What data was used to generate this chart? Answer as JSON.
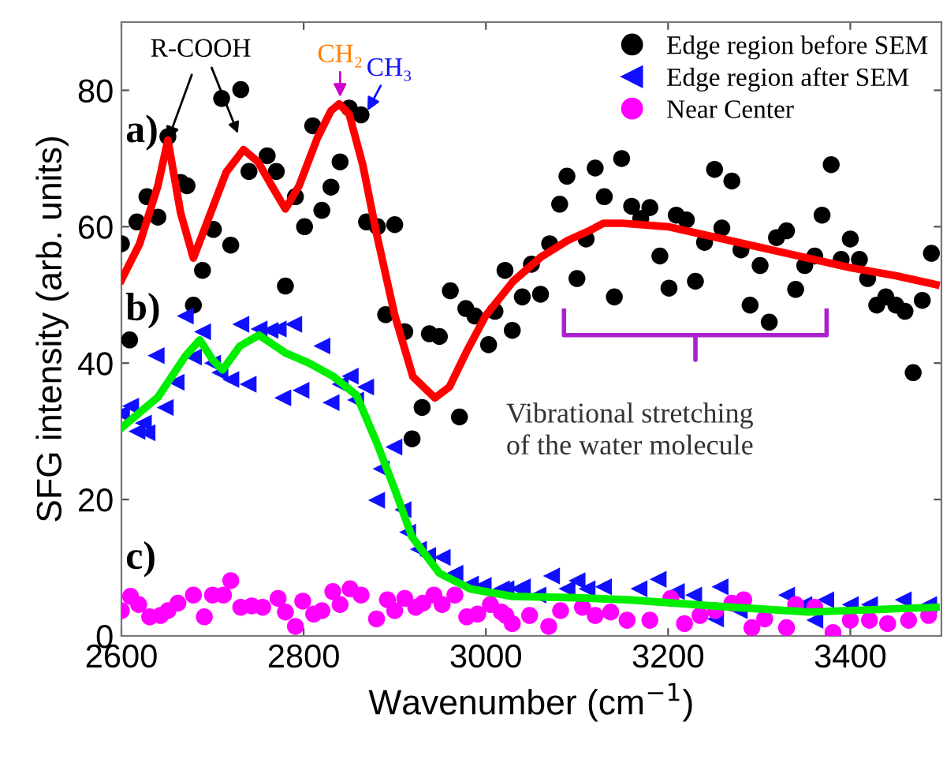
{
  "chart_data": {
    "type": "scatter",
    "xlabel": "Wavenumber (cm$^{−1}$)",
    "ylabel": "SFG intensity (arb. units)",
    "xlim": [
      2600,
      3500
    ],
    "ylim": [
      0,
      90
    ],
    "xticks": [
      2600,
      2800,
      3000,
      3200,
      3400
    ],
    "yticks": [
      0,
      20,
      40,
      60,
      80
    ],
    "grid": false,
    "legend": "top right",
    "series": [
      {
        "name": "Edge region before SEM",
        "marker": "circle",
        "color": "#000000",
        "x": [
          2600,
          2609,
          2617,
          2628,
          2640,
          2651,
          2665,
          2672,
          2679,
          2689,
          2701,
          2710,
          2720,
          2731,
          2740,
          2760,
          2770,
          2780,
          2791,
          2801,
          2810,
          2820,
          2830,
          2840,
          2850,
          2863,
          2869,
          2881,
          2890,
          2900,
          2911,
          2919,
          2930,
          2938,
          2949,
          2961,
          2971,
          2978,
          2988,
          3003,
          3010,
          3021,
          3029,
          3040,
          3050,
          3060,
          3070,
          3081,
          3089,
          3100,
          3110,
          3120,
          3130,
          3141,
          3149,
          3160,
          3170,
          3180,
          3191,
          3201,
          3209,
          3220,
          3230,
          3240,
          3251,
          3259,
          3270,
          3280,
          3290,
          3301,
          3311,
          3319,
          3330,
          3340,
          3350,
          3361,
          3369,
          3379,
          3390,
          3400,
          3410,
          3419,
          3429,
          3439,
          3450,
          3460,
          3469,
          3479,
          3489
        ],
        "values": [
          57.5,
          43.4,
          60.7,
          64.4,
          61.4,
          73.2,
          66.5,
          66,
          48.5,
          53.6,
          59.6,
          78.8,
          57.3,
          80.1,
          68.1,
          70.4,
          68.1,
          51.3,
          64.4,
          60.0,
          74.8,
          62.4,
          65.8,
          69.5,
          77.4,
          76.4,
          60.7,
          60.0,
          47.1,
          60.3,
          44.6,
          28.9,
          33.5,
          44.3,
          43.9,
          50.6,
          32.1,
          48.0,
          46.9,
          42.7,
          47.6,
          53.6,
          44.8,
          49.7,
          54.5,
          50.1,
          57.5,
          63.3,
          67.4,
          52.4,
          58.2,
          68.6,
          64.4,
          49.7,
          70.0,
          63.0,
          61.2,
          62.8,
          55.7,
          51.0,
          61.7,
          61.0,
          52.0,
          57.7,
          68.4,
          59.8,
          66.7,
          56.6,
          48.5,
          54.3,
          46.0,
          58.4,
          59.4,
          50.8,
          54.3,
          55.7,
          61.7,
          69.1,
          55.2,
          58.2,
          55.2,
          52.4,
          48.5,
          49.7,
          48.5,
          47.6,
          38.6,
          49.2,
          56.1
        ]
      },
      {
        "name": "Edge region after SEM",
        "marker": "triangle",
        "color": "#1010ff",
        "x": [
          2600,
          2610,
          2617,
          2624,
          2628,
          2638,
          2648,
          2660,
          2670,
          2679,
          2689,
          2700,
          2708,
          2720,
          2731,
          2739,
          2751,
          2763,
          2772,
          2777,
          2789,
          2797,
          2820,
          2830,
          2840,
          2851,
          2857,
          2868,
          2880,
          2885,
          2899,
          2909,
          2914,
          2926,
          2936,
          2952,
          2966,
          2983,
          2997,
          3017,
          3022,
          3036,
          3040,
          3057,
          3072,
          3089,
          3100,
          3111,
          3129,
          3168,
          3189,
          3209,
          3228,
          3252,
          3257,
          3278,
          3330,
          3349,
          3361,
          3373,
          3400,
          3421,
          3458,
          3486
        ],
        "values": [
          32.6,
          33.7,
          30.0,
          31.2,
          29.8,
          41.1,
          33.5,
          37.2,
          46.9,
          40.9,
          44.6,
          40.0,
          38.6,
          37.6,
          45.7,
          36.9,
          45.0,
          44.8,
          45.0,
          34.9,
          45.7,
          36.0,
          42.5,
          34.2,
          36.9,
          38.1,
          34.6,
          36.5,
          19.9,
          24.5,
          27.7,
          18.5,
          15.2,
          12.7,
          11.8,
          11.5,
          9.2,
          7.6,
          7.4,
          6.9,
          6.9,
          6.9,
          7.2,
          6.0,
          8.8,
          6.9,
          8.1,
          6.9,
          7.2,
          6.9,
          8.3,
          6.5,
          6.0,
          2.5,
          7.2,
          3.7,
          6.0,
          4.6,
          2.3,
          5.3,
          4.6,
          4.6,
          5.3,
          4.6
        ]
      },
      {
        "name": "Near Center",
        "marker": "circle",
        "color": "#ff00ff",
        "x": [
          2600,
          2610,
          2619,
          2631,
          2643,
          2651,
          2662,
          2679,
          2691,
          2700,
          2712,
          2720,
          2731,
          2743,
          2755,
          2772,
          2780,
          2791,
          2799,
          2811,
          2820,
          2832,
          2840,
          2851,
          2863,
          2880,
          2892,
          2900,
          2911,
          2923,
          2931,
          2943,
          2952,
          2966,
          2979,
          2991,
          3005,
          3017,
          3022,
          3029,
          3048,
          3069,
          3082,
          3106,
          3120,
          3137,
          3155,
          3180,
          3203,
          3218,
          3235,
          3252,
          3270,
          3283,
          3292,
          3306,
          3330,
          3340,
          3361,
          3381,
          3400,
          3421,
          3441,
          3464,
          3486
        ],
        "values": [
          3.7,
          5.8,
          4.6,
          2.8,
          3.0,
          3.7,
          4.8,
          6.0,
          2.8,
          6.0,
          6.0,
          8.1,
          4.2,
          4.4,
          4.2,
          5.5,
          3.5,
          1.4,
          5.1,
          3.2,
          3.7,
          6.5,
          4.6,
          6.9,
          6.0,
          2.5,
          5.3,
          3.7,
          5.5,
          4.2,
          4.8,
          6.0,
          4.6,
          6.0,
          2.8,
          3.2,
          4.6,
          3.5,
          3.0,
          1.8,
          3.0,
          1.4,
          3.7,
          4.2,
          3.0,
          3.5,
          2.3,
          2.3,
          5.5,
          1.8,
          3.0,
          3.7,
          4.8,
          5.3,
          1.2,
          2.5,
          1.2,
          4.6,
          4.2,
          0.5,
          2.3,
          2.3,
          1.8,
          2.3,
          3.0
        ]
      },
      {
        "type": "line",
        "color": "#ff0000",
        "x": [
          2600,
          2620,
          2640,
          2651,
          2665,
          2679,
          2695,
          2715,
          2734,
          2750,
          2765,
          2780,
          2795,
          2815,
          2830,
          2839,
          2850,
          2865,
          2880,
          2900,
          2920,
          2944,
          2960,
          2980,
          3000,
          3030,
          3060,
          3090,
          3115,
          3129,
          3150,
          3200,
          3250,
          3300,
          3350,
          3400,
          3450,
          3494
        ],
        "values": [
          52.2,
          57.5,
          66,
          72.7,
          62,
          55.4,
          61,
          68,
          71.3,
          69.5,
          66,
          62.6,
          66,
          73,
          77,
          78,
          76.5,
          69,
          59,
          47,
          38,
          34.9,
          36.5,
          42,
          47,
          52,
          55.5,
          58,
          59.5,
          60.5,
          60.5,
          60,
          58.5,
          57,
          55.5,
          54,
          52.8,
          51.5
        ]
      },
      {
        "type": "line",
        "color": "#00ee00",
        "x": [
          2600,
          2640,
          2670,
          2686,
          2700,
          2711,
          2730,
          2751,
          2780,
          2806,
          2832,
          2858,
          2880,
          2900,
          2919,
          2949,
          2983,
          3029,
          3100,
          3155,
          3270,
          3355,
          3494
        ],
        "values": [
          30.5,
          35,
          41,
          43.4,
          40.5,
          39,
          42.5,
          44.1,
          41.5,
          40,
          38.1,
          35.3,
          28.4,
          21.5,
          14.5,
          9.2,
          6.9,
          5.8,
          5.6,
          5.3,
          4.2,
          3.5,
          4.2
        ]
      }
    ],
    "annotations": [
      "a)",
      "b)",
      "c)",
      {
        "text": "R-COOH",
        "x": 2651,
        "y": 72.7
      },
      {
        "text": "CH₂",
        "x": 2840,
        "y": 78
      },
      {
        "text": "CH₃",
        "x": 2870,
        "y": 76
      },
      "Vibrational stretching\nof the water molecule"
    ]
  }
}
